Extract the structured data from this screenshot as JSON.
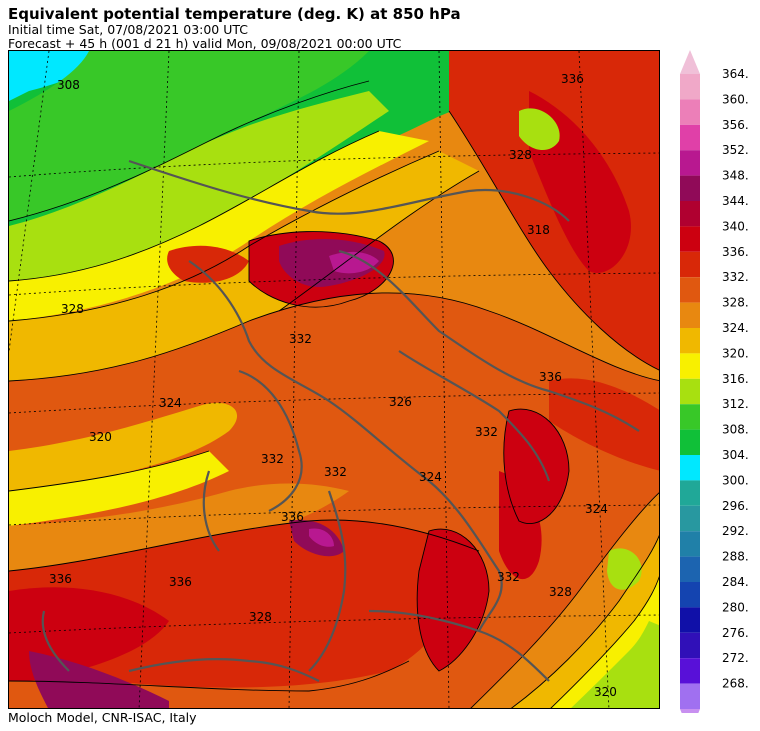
{
  "header": {
    "title": "Equivalent potential temperature (deg. K) at 850 hPa",
    "initial_time": "Initial time  Sat, 07/08/2021  03:00 UTC",
    "forecast": "Forecast  +  45 h  (001 d 21 h)  valid Mon, 09/08/2021 00:00 UTC"
  },
  "footer": {
    "credit": "Moloch Model, CNR-ISAC, Italy"
  },
  "legend": {
    "levels": [
      {
        "value": "364.",
        "color": "#f0a8c8"
      },
      {
        "value": "360.",
        "color": "#ec7fb8"
      },
      {
        "value": "356.",
        "color": "#e040a8"
      },
      {
        "value": "352.",
        "color": "#b81890"
      },
      {
        "value": "348.",
        "color": "#900a58"
      },
      {
        "value": "344.",
        "color": "#b00030"
      },
      {
        "value": "340.",
        "color": "#cc0010"
      },
      {
        "value": "336.",
        "color": "#d82808"
      },
      {
        "value": "332.",
        "color": "#e05810"
      },
      {
        "value": "328.",
        "color": "#e88810"
      },
      {
        "value": "324.",
        "color": "#f0b800"
      },
      {
        "value": "320.",
        "color": "#f8f000"
      },
      {
        "value": "316.",
        "color": "#a8e010"
      },
      {
        "value": "312.",
        "color": "#38c828"
      },
      {
        "value": "308.",
        "color": "#10c038"
      },
      {
        "value": "304.",
        "color": "#00e8ff"
      },
      {
        "value": "300.",
        "color": "#20a898"
      },
      {
        "value": "296.",
        "color": "#2898a0"
      },
      {
        "value": "292.",
        "color": "#2080a8"
      },
      {
        "value": "288.",
        "color": "#1c64b0"
      },
      {
        "value": "284.",
        "color": "#1444b0"
      },
      {
        "value": "280.",
        "color": "#1010a8"
      },
      {
        "value": "276.",
        "color": "#3010b8"
      },
      {
        "value": "272.",
        "color": "#5810d8"
      },
      {
        "value": "268.",
        "color": "#a070f0"
      }
    ],
    "top_arrow_color": "#f0c0d8",
    "bottom_arrow_color": "#c890f0"
  },
  "map": {
    "contour_labels": [
      "308",
      "336",
      "328",
      "318",
      "328",
      "332",
      "324",
      "320",
      "326",
      "332",
      "336",
      "332",
      "336",
      "324",
      "328",
      "336",
      "336",
      "332",
      "324",
      "328",
      "320",
      "332"
    ]
  }
}
